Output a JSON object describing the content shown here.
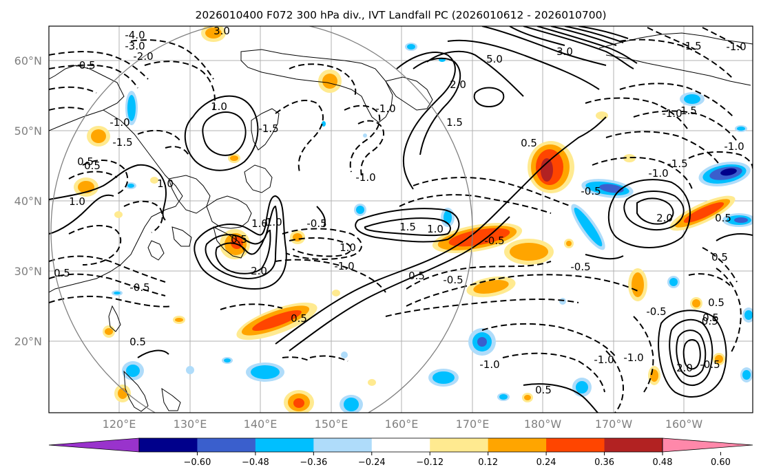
{
  "title": "2026010400 F072 300 hPa div., IVT Landfall PC (2026010612 - 2026010700)",
  "map": {
    "lat_ticks": [
      "20°N",
      "30°N",
      "40°N",
      "50°N",
      "60°N"
    ],
    "lon_ticks": [
      "120°E",
      "130°E",
      "140°E",
      "150°E",
      "160°E",
      "170°E",
      "180°W",
      "170°W",
      "160°W"
    ],
    "tick_color": "#7f7f7f",
    "grid": true,
    "lat_range": [
      10,
      65
    ],
    "lon_range": [
      110,
      210
    ],
    "contour_labels": [
      "-4.0",
      "-3.0",
      "-2.0",
      "-1.5",
      "-1.0",
      "0.5",
      "1.0",
      "0.5",
      "1.0",
      "3.0",
      "5.0",
      "3.0",
      "2.0",
      "1.5",
      "-1.0",
      "-1.5",
      "-1.0",
      "-1.5",
      "-1.0",
      "1.5",
      "1.0",
      "-0.5",
      "0.5",
      "-1.0",
      "-1.0",
      "1.0",
      "0.5",
      "2.0",
      "1.5",
      "1.0",
      "-0.5",
      "-1.0",
      "1.0",
      "-0.5",
      "0.5",
      "0.5",
      "-0.5",
      "-1.0",
      "0.5",
      "-0.5",
      "-0.5",
      "-1.0",
      "2.0",
      "-0.5",
      "0.5",
      "0.5",
      "0.5",
      "-1.0",
      "0.5",
      "-1.5",
      "-1.0",
      "2.0",
      "-0.5",
      "0.5",
      "-1.0",
      "-0.5",
      "-0.5",
      "0.5"
    ]
  },
  "colorbar": {
    "tick_labels": [
      "−0.60",
      "−0.48",
      "−0.36",
      "−0.24",
      "−0.12",
      "0.12",
      "0.24",
      "0.36",
      "0.48",
      "0.60"
    ],
    "colors": [
      "#9933cc",
      "#00008b",
      "#3a5fcd",
      "#00bfff",
      "#afdcfa",
      "#ffffff",
      "#ffea90",
      "#ffa500",
      "#ff4500",
      "#b22222",
      "#ff88aa"
    ]
  },
  "shading_colors": {
    "neg_strong": "#00008b",
    "neg_mid": "#3a5fcd",
    "neg_light": "#00bfff",
    "neg_faint": "#afdcfa",
    "pos_faint": "#ffea90",
    "pos_light": "#ffa500",
    "pos_mid": "#ff4500",
    "pos_strong": "#b22222"
  }
}
